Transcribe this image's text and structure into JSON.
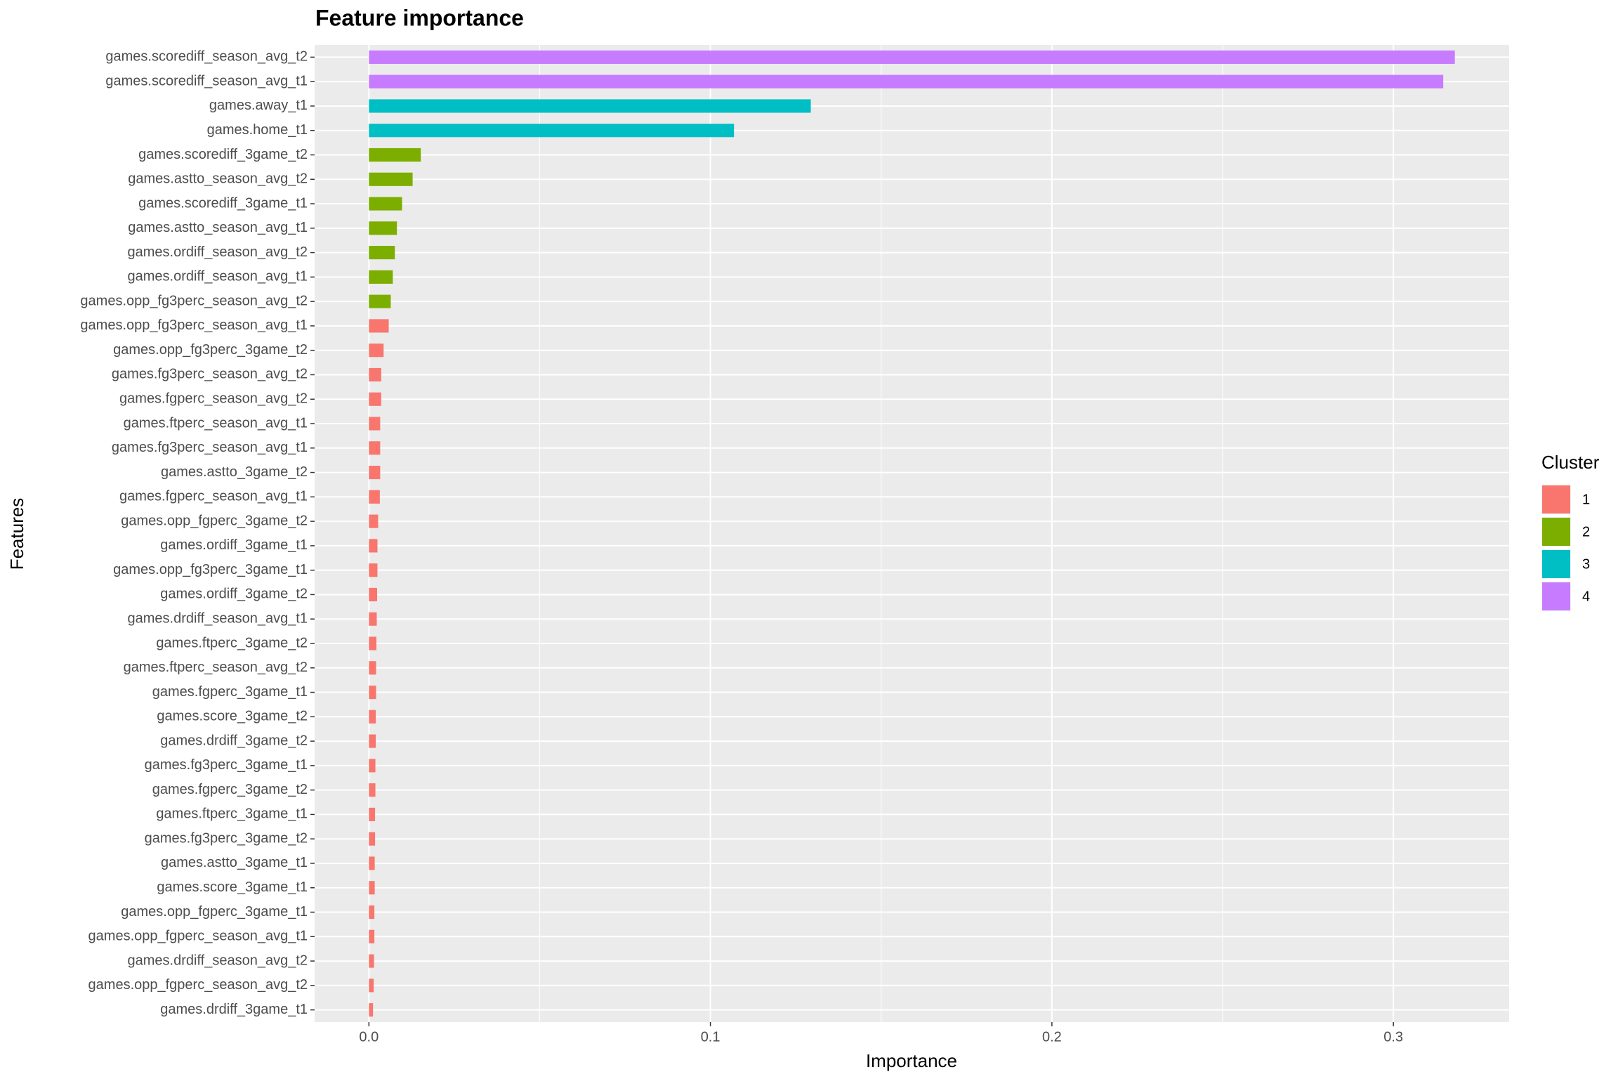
{
  "chart_data": {
    "type": "bar",
    "orientation": "horizontal",
    "title": "Feature importance",
    "x_label": "Importance",
    "y_label": "Features",
    "categories": [
      "games.scorediff_season_avg_t2",
      "games.scorediff_season_avg_t1",
      "games.away_t1",
      "games.home_t1",
      "games.scorediff_3game_t2",
      "games.astto_season_avg_t2",
      "games.scorediff_3game_t1",
      "games.astto_season_avg_t1",
      "games.ordiff_season_avg_t2",
      "games.ordiff_season_avg_t1",
      "games.opp_fg3perc_season_avg_t2",
      "games.opp_fg3perc_season_avg_t1",
      "games.opp_fg3perc_3game_t2",
      "games.fg3perc_season_avg_t2",
      "games.fgperc_season_avg_t2",
      "games.ftperc_season_avg_t1",
      "games.fg3perc_season_avg_t1",
      "games.astto_3game_t2",
      "games.fgperc_season_avg_t1",
      "games.opp_fgperc_3game_t2",
      "games.ordiff_3game_t1",
      "games.opp_fg3perc_3game_t1",
      "games.ordiff_3game_t2",
      "games.drdiff_season_avg_t1",
      "games.ftperc_3game_t2",
      "games.ftperc_season_avg_t2",
      "games.fgperc_3game_t1",
      "games.score_3game_t2",
      "games.drdiff_3game_t2",
      "games.fg3perc_3game_t1",
      "games.fgperc_3game_t2",
      "games.ftperc_3game_t1",
      "games.fg3perc_3game_t2",
      "games.astto_3game_t1",
      "games.score_3game_t1",
      "games.opp_fgperc_3game_t1",
      "games.opp_fgperc_season_avg_t1",
      "games.drdiff_season_avg_t2",
      "games.opp_fgperc_season_avg_t2",
      "games.drdiff_3game_t1"
    ],
    "legend_title": "Cluster",
    "series": [
      {
        "name": "1",
        "color": "#F8766D",
        "values": [
          null,
          null,
          null,
          null,
          null,
          null,
          null,
          null,
          null,
          null,
          null,
          0.0058,
          0.0043,
          0.0036,
          0.0036,
          0.0033,
          0.0033,
          0.0033,
          0.0032,
          0.0027,
          0.0025,
          0.0025,
          0.0024,
          0.0023,
          0.0022,
          0.0021,
          0.0021,
          0.002,
          0.002,
          0.0019,
          0.0019,
          0.0018,
          0.0018,
          0.0017,
          0.0017,
          0.0016,
          0.0016,
          0.0015,
          0.0014,
          0.0012
        ]
      },
      {
        "name": "2",
        "color": "#7CAE00",
        "values": [
          null,
          null,
          null,
          null,
          0.0152,
          0.0128,
          0.0097,
          0.0082,
          0.0076,
          0.007,
          0.0064,
          null,
          null,
          null,
          null,
          null,
          null,
          null,
          null,
          null,
          null,
          null,
          null,
          null,
          null,
          null,
          null,
          null,
          null,
          null,
          null,
          null,
          null,
          null,
          null,
          null,
          null,
          null,
          null,
          null
        ]
      },
      {
        "name": "3",
        "color": "#00BFC4",
        "values": [
          null,
          null,
          0.1294,
          0.1069,
          null,
          null,
          null,
          null,
          null,
          null,
          null,
          null,
          null,
          null,
          null,
          null,
          null,
          null,
          null,
          null,
          null,
          null,
          null,
          null,
          null,
          null,
          null,
          null,
          null,
          null,
          null,
          null,
          null,
          null,
          null,
          null,
          null,
          null,
          null,
          null
        ]
      },
      {
        "name": "4",
        "color": "#C77CFF",
        "values": [
          0.318,
          0.3146,
          null,
          null,
          null,
          null,
          null,
          null,
          null,
          null,
          null,
          null,
          null,
          null,
          null,
          null,
          null,
          null,
          null,
          null,
          null,
          null,
          null,
          null,
          null,
          null,
          null,
          null,
          null,
          null,
          null,
          null,
          null,
          null,
          null,
          null,
          null,
          null,
          null,
          null
        ]
      }
    ],
    "xlim": [
      -0.0159,
      0.3339
    ],
    "xticks": [
      {
        "value": 0,
        "label": "0.0"
      },
      0.1,
      0.2,
      0.3
    ],
    "grid": true,
    "legend_position": "right"
  }
}
